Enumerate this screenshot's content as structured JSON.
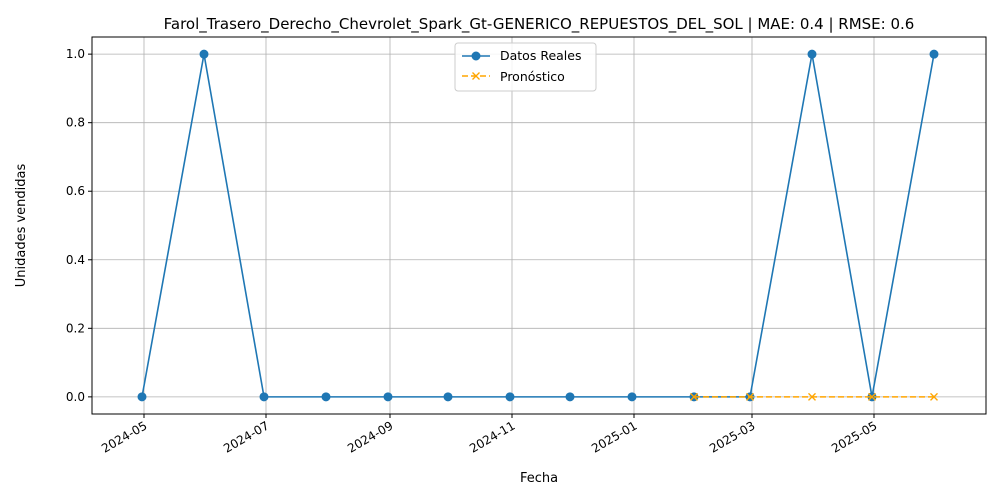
{
  "chart_data": {
    "type": "line",
    "title": "Farol_Trasero_Derecho_Chevrolet_Spark_Gt-GENERICO_REPUESTOS_DEL_SOL | MAE: 0.4 | RMSE: 0.6",
    "xlabel": "Fecha",
    "ylabel": "Unidades vendidas",
    "x_ticks": [
      "2024-05",
      "2024-07",
      "2024-09",
      "2024-11",
      "2025-01",
      "2025-03",
      "2025-05"
    ],
    "y_ticks": [
      "0.0",
      "0.2",
      "0.4",
      "0.6",
      "0.8",
      "1.0"
    ],
    "ylim": [
      -0.05,
      1.05
    ],
    "xlim": [
      "2024-04-05",
      "2025-06-26"
    ],
    "grid": true,
    "legend_position": "top-center",
    "series": [
      {
        "name": "Datos Reales",
        "color": "#1f77b4",
        "marker": "circle",
        "linestyle": "solid",
        "x": [
          "2024-04-30",
          "2024-05-31",
          "2024-06-30",
          "2024-07-31",
          "2024-08-31",
          "2024-09-30",
          "2024-10-31",
          "2024-11-30",
          "2024-12-31",
          "2025-01-31",
          "2025-02-28",
          "2025-03-31",
          "2025-04-30",
          "2025-05-31"
        ],
        "values": [
          0,
          1,
          0,
          0,
          0,
          0,
          0,
          0,
          0,
          0,
          0,
          1,
          0,
          1
        ]
      },
      {
        "name": "Pronóstico",
        "color": "#ffa500",
        "marker": "x",
        "linestyle": "dashed",
        "x": [
          "2025-01-31",
          "2025-02-28",
          "2025-03-31",
          "2025-04-30",
          "2025-05-31"
        ],
        "values": [
          0,
          0,
          0,
          0,
          0
        ]
      }
    ]
  }
}
